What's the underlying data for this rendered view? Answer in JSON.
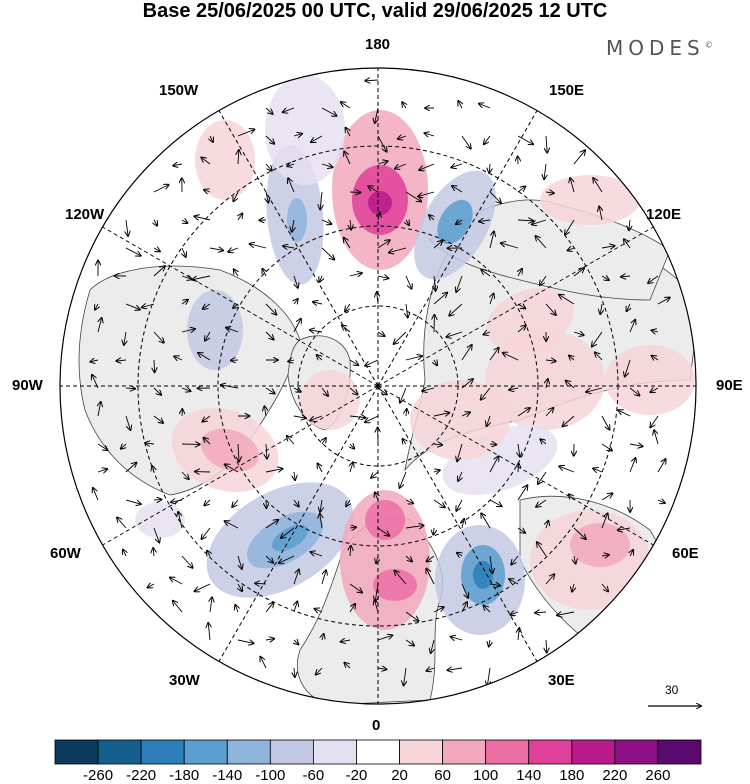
{
  "title": "Base 25/06/2025 00 UTC, valid 29/06/2025 12 UTC",
  "brand": "MODES",
  "brand_mark": "©",
  "longitude_labels": {
    "lon_180": "180",
    "lon_150w": "150W",
    "lon_150e": "150E",
    "lon_120w": "120W",
    "lon_120e": "120E",
    "lon_90w": "90W",
    "lon_90e": "90E",
    "lon_60w": "60W",
    "lon_60e": "60E",
    "lon_30w": "30W",
    "lon_30e": "30E",
    "lon_0": "0"
  },
  "reference_vector": "30",
  "colorbar": {
    "labels": [
      "-260",
      "-220",
      "-180",
      "-140",
      "-100",
      "-60",
      "-20",
      "20",
      "60",
      "100",
      "140",
      "180",
      "220",
      "260"
    ],
    "colors": [
      "#0b3a5c",
      "#155f8e",
      "#2c7fb8",
      "#5a9fcf",
      "#8fb4dc",
      "#c3c9e4",
      "#e5e1f0",
      "#ffffff",
      "#f7d5d8",
      "#f2a9bd",
      "#ec6fa6",
      "#e0409a",
      "#b81a8a",
      "#8c0f84",
      "#5a0a6e"
    ]
  },
  "colors": {
    "land": "#ececec",
    "positive": "#f4c4c8",
    "negative": "#c3c9e4"
  }
}
